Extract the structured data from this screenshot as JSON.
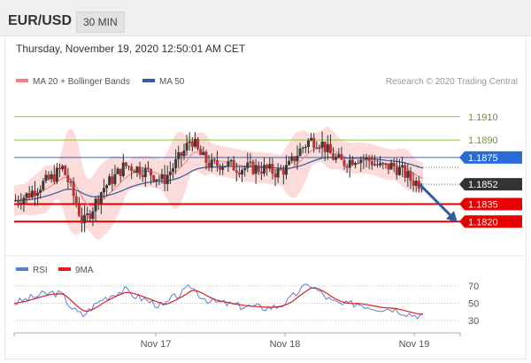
{
  "header": {
    "symbol": "EUR/USD",
    "timeframe": "30 MIN"
  },
  "timestamp": "Thursday, November 19, 2020 12:50:01 AM CET",
  "legend": {
    "bollinger_label": "MA 20 + Bollinger Bands",
    "ma50_label": "MA 50",
    "rsi_label": "RSI",
    "ma9_label": "9MA"
  },
  "copyright": "Research © 2020 Trading Central",
  "colors": {
    "resistance": "#8dc63f",
    "pivot": "#2a6bd8",
    "support": "#e60000",
    "current": "#333333",
    "ma50": "#2f5d9e",
    "bollinger_fill": "#fbd5d5",
    "ma20": "#f08080",
    "candle_up": "#3a3a3a",
    "candle_down": "#c03030",
    "rsi": "#5a7fd8",
    "ma9": "#e02020",
    "arrow": "#2f5d9e"
  },
  "chart_data": {
    "type": "candlestick",
    "instrument": "EUR/USD",
    "interval": "30 MIN",
    "price_range": [
      1.1805,
      1.1925
    ],
    "x_ticks": [
      "Nov 17",
      "Nov 18",
      "Nov 19"
    ],
    "levels": [
      {
        "value": 1.191,
        "label": "1.1910",
        "kind": "resistance"
      },
      {
        "value": 1.189,
        "label": "1.1890",
        "kind": "resistance"
      },
      {
        "value": 1.1875,
        "label": "1.1875",
        "kind": "pivot"
      },
      {
        "value": 1.1852,
        "label": "1.1852",
        "kind": "current"
      },
      {
        "value": 1.1835,
        "label": "1.1835",
        "kind": "support"
      },
      {
        "value": 1.182,
        "label": "1.1820",
        "kind": "support"
      }
    ],
    "price_path": [
      [
        0,
        1.1838
      ],
      [
        10,
        1.1843
      ],
      [
        20,
        1.1852
      ],
      [
        28,
        1.1858
      ],
      [
        35,
        1.1866
      ],
      [
        40,
        1.1852
      ],
      [
        45,
        1.1835
      ],
      [
        50,
        1.1818
      ],
      [
        56,
        1.183
      ],
      [
        64,
        1.1848
      ],
      [
        74,
        1.186
      ],
      [
        80,
        1.1868
      ],
      [
        88,
        1.1866
      ],
      [
        98,
        1.1862
      ],
      [
        108,
        1.1855
      ],
      [
        114,
        1.1865
      ],
      [
        124,
        1.1882
      ],
      [
        128,
        1.1892
      ],
      [
        134,
        1.1878
      ],
      [
        142,
        1.1868
      ],
      [
        152,
        1.187
      ],
      [
        162,
        1.1866
      ],
      [
        172,
        1.1866
      ],
      [
        182,
        1.1865
      ],
      [
        190,
        1.1862
      ],
      [
        198,
        1.1866
      ],
      [
        206,
        1.188
      ],
      [
        214,
        1.189
      ],
      [
        222,
        1.1888
      ],
      [
        230,
        1.1876
      ],
      [
        238,
        1.187
      ],
      [
        248,
        1.1875
      ],
      [
        258,
        1.1872
      ],
      [
        266,
        1.1866
      ],
      [
        274,
        1.1868
      ],
      [
        282,
        1.1862
      ],
      [
        288,
        1.1855
      ],
      [
        296,
        1.1852
      ]
    ],
    "rsi": {
      "levels": [
        70,
        50,
        30
      ],
      "range": [
        20,
        80
      ],
      "path": [
        [
          0,
          50
        ],
        [
          10,
          55
        ],
        [
          20,
          60
        ],
        [
          28,
          62
        ],
        [
          35,
          60
        ],
        [
          40,
          48
        ],
        [
          45,
          40
        ],
        [
          50,
          36
        ],
        [
          56,
          45
        ],
        [
          64,
          55
        ],
        [
          74,
          62
        ],
        [
          80,
          65
        ],
        [
          88,
          58
        ],
        [
          98,
          52
        ],
        [
          108,
          46
        ],
        [
          114,
          55
        ],
        [
          124,
          64
        ],
        [
          128,
          70
        ],
        [
          134,
          60
        ],
        [
          142,
          52
        ],
        [
          152,
          50
        ],
        [
          162,
          47
        ],
        [
          172,
          46
        ],
        [
          182,
          45
        ],
        [
          190,
          46
        ],
        [
          198,
          52
        ],
        [
          206,
          64
        ],
        [
          214,
          72
        ],
        [
          222,
          62
        ],
        [
          230,
          52
        ],
        [
          238,
          48
        ],
        [
          248,
          50
        ],
        [
          258,
          46
        ],
        [
          266,
          44
        ],
        [
          274,
          44
        ],
        [
          282,
          40
        ],
        [
          288,
          37
        ],
        [
          296,
          36
        ]
      ]
    }
  }
}
